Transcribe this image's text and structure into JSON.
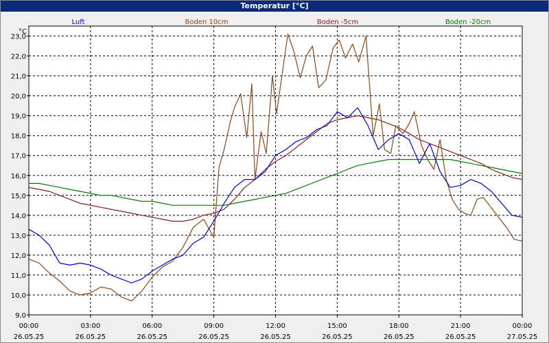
{
  "window": {
    "title": "Temperatur [°C]"
  },
  "chart_data": {
    "type": "line",
    "title": "Temperatur [°C]",
    "ylabel": "°C",
    "xlabel": "",
    "ylim": [
      9.0,
      23.5
    ],
    "yticks": [
      "23,0",
      "22,0",
      "21,0",
      "20,0",
      "19,0",
      "18,0",
      "17,0",
      "16,0",
      "15,0",
      "14,0",
      "13,0",
      "12,0",
      "11,0",
      "10,0",
      "9,0"
    ],
    "xlim_hours": [
      0,
      24
    ],
    "x_ticks": [
      {
        "h": 0,
        "time": "00:00",
        "date": "26.05.25"
      },
      {
        "h": 3,
        "time": "03:00",
        "date": "26.05.25"
      },
      {
        "h": 6,
        "time": "06:00",
        "date": "26.05.25"
      },
      {
        "h": 9,
        "time": "09:00",
        "date": "26.05.25"
      },
      {
        "h": 12,
        "time": "12:00",
        "date": "26.05.25"
      },
      {
        "h": 15,
        "time": "15:00",
        "date": "26.05.25"
      },
      {
        "h": 18,
        "time": "18:00",
        "date": "26.05.25"
      },
      {
        "h": 21,
        "time": "21:00",
        "date": "26.05.25"
      },
      {
        "h": 24,
        "time": "00:00",
        "date": "27.05.25"
      }
    ],
    "grid": true,
    "legend_position": "top",
    "series": [
      {
        "name": "Luft",
        "color": "#0000cc",
        "x": [
          0,
          0.5,
          1,
          1.5,
          2,
          2.5,
          3,
          3.5,
          4,
          4.5,
          5,
          5.5,
          6,
          6.5,
          7,
          7.5,
          8,
          8.5,
          9,
          9.5,
          10,
          10.5,
          11,
          11.5,
          12,
          12.5,
          13,
          13.5,
          14,
          14.5,
          15,
          15.5,
          16,
          16.5,
          17,
          17.5,
          18,
          18.5,
          19,
          19.5,
          20,
          20.5,
          21,
          21.5,
          22,
          22.5,
          23,
          23.5,
          24
        ],
        "y": [
          13.3,
          13.0,
          12.5,
          11.6,
          11.5,
          11.6,
          11.5,
          11.3,
          11.0,
          10.8,
          10.6,
          10.8,
          11.2,
          11.5,
          11.8,
          12.0,
          12.6,
          12.9,
          13.7,
          14.6,
          15.4,
          15.8,
          15.8,
          16.2,
          17.0,
          17.3,
          17.7,
          17.9,
          18.3,
          18.5,
          19.2,
          18.9,
          19.4,
          18.5,
          17.3,
          17.8,
          18.1,
          17.8,
          16.6,
          17.6,
          16.2,
          15.4,
          15.5,
          15.8,
          15.6,
          15.2,
          14.6,
          14.0,
          13.9
        ]
      },
      {
        "name": "Boden 10cm",
        "color": "#8b4513",
        "x": [
          0,
          0.5,
          1,
          1.5,
          2,
          2.5,
          3,
          3.5,
          4,
          4.5,
          5,
          5.5,
          6,
          6.5,
          7,
          7.5,
          8,
          8.5,
          9,
          9.25,
          9.5,
          9.8,
          10,
          10.3,
          10.6,
          10.85,
          11,
          11.3,
          11.55,
          11.85,
          12.05,
          12.35,
          12.6,
          12.9,
          13.2,
          13.5,
          13.8,
          14.1,
          14.45,
          14.8,
          15.1,
          15.4,
          15.75,
          16.05,
          16.4,
          16.75,
          17.05,
          17.3,
          17.6,
          17.85,
          18.2,
          18.5,
          18.75,
          19.1,
          19.4,
          19.7,
          20.0,
          20.3,
          20.6,
          20.9,
          21.2,
          21.5,
          21.8,
          22.1,
          22.4,
          22.7,
          23.0,
          23.3,
          23.6,
          24
        ],
        "y": [
          11.8,
          11.6,
          11.1,
          10.7,
          10.2,
          10.0,
          10.1,
          10.4,
          10.3,
          9.9,
          9.7,
          10.2,
          10.9,
          11.4,
          11.7,
          12.4,
          13.4,
          13.8,
          12.9,
          16.4,
          17.3,
          18.7,
          19.4,
          20.1,
          17.9,
          20.6,
          15.8,
          18.2,
          17.1,
          21.0,
          19.1,
          21.3,
          23.1,
          22.2,
          20.9,
          22.0,
          22.5,
          20.4,
          20.8,
          22.4,
          22.8,
          21.9,
          22.6,
          21.7,
          23.0,
          18.0,
          19.6,
          17.3,
          17.1,
          18.5,
          18.1,
          18.6,
          19.2,
          17.5,
          16.8,
          16.3,
          17.8,
          15.8,
          14.8,
          14.3,
          14.1,
          14.0,
          14.8,
          14.9,
          14.5,
          14.1,
          13.7,
          13.3,
          12.8,
          12.7
        ]
      },
      {
        "name": "Boden -5cm",
        "color": "#8b1a1a",
        "x": [
          0,
          0.5,
          1,
          1.5,
          2,
          2.5,
          3,
          3.5,
          4,
          4.5,
          5,
          5.5,
          6,
          6.5,
          7,
          7.5,
          8,
          8.5,
          9,
          9.5,
          10,
          10.5,
          11,
          11.5,
          12,
          12.5,
          13,
          13.5,
          14,
          14.5,
          15,
          15.5,
          16,
          16.5,
          17,
          17.5,
          18,
          18.5,
          19,
          19.5,
          20,
          20.5,
          21,
          21.5,
          22,
          22.5,
          23,
          23.5,
          24
        ],
        "y": [
          15.4,
          15.3,
          15.2,
          15.0,
          14.8,
          14.6,
          14.5,
          14.4,
          14.3,
          14.2,
          14.1,
          14.0,
          13.9,
          13.8,
          13.7,
          13.7,
          13.8,
          14.0,
          14.1,
          14.3,
          14.8,
          15.4,
          15.8,
          16.3,
          16.7,
          17.0,
          17.4,
          17.8,
          18.2,
          18.6,
          18.8,
          18.9,
          19.0,
          18.9,
          18.8,
          18.6,
          18.4,
          18.1,
          17.8,
          17.6,
          17.4,
          17.2,
          17.0,
          16.8,
          16.6,
          16.3,
          16.1,
          15.9,
          15.8
        ]
      },
      {
        "name": "Boden -20cm",
        "color": "#008000",
        "x": [
          0,
          0.5,
          1,
          1.5,
          2,
          2.5,
          3,
          3.5,
          4,
          4.5,
          5,
          5.5,
          6,
          6.5,
          7,
          7.5,
          8,
          8.5,
          9,
          9.5,
          10,
          10.5,
          11,
          11.5,
          12,
          12.5,
          13,
          13.5,
          14,
          14.5,
          15,
          15.5,
          16,
          16.5,
          17,
          17.5,
          18,
          18.5,
          19,
          19.5,
          20,
          20.5,
          21,
          21.5,
          22,
          22.5,
          23,
          23.5,
          24
        ],
        "y": [
          15.6,
          15.6,
          15.5,
          15.4,
          15.3,
          15.2,
          15.1,
          15.0,
          15.0,
          14.9,
          14.8,
          14.7,
          14.7,
          14.6,
          14.5,
          14.5,
          14.5,
          14.5,
          14.5,
          14.5,
          14.6,
          14.7,
          14.8,
          14.9,
          15.0,
          15.1,
          15.3,
          15.5,
          15.7,
          15.9,
          16.1,
          16.3,
          16.5,
          16.6,
          16.7,
          16.8,
          16.8,
          16.8,
          16.8,
          16.8,
          16.8,
          16.8,
          16.7,
          16.6,
          16.5,
          16.4,
          16.3,
          16.2,
          16.1
        ]
      }
    ]
  }
}
